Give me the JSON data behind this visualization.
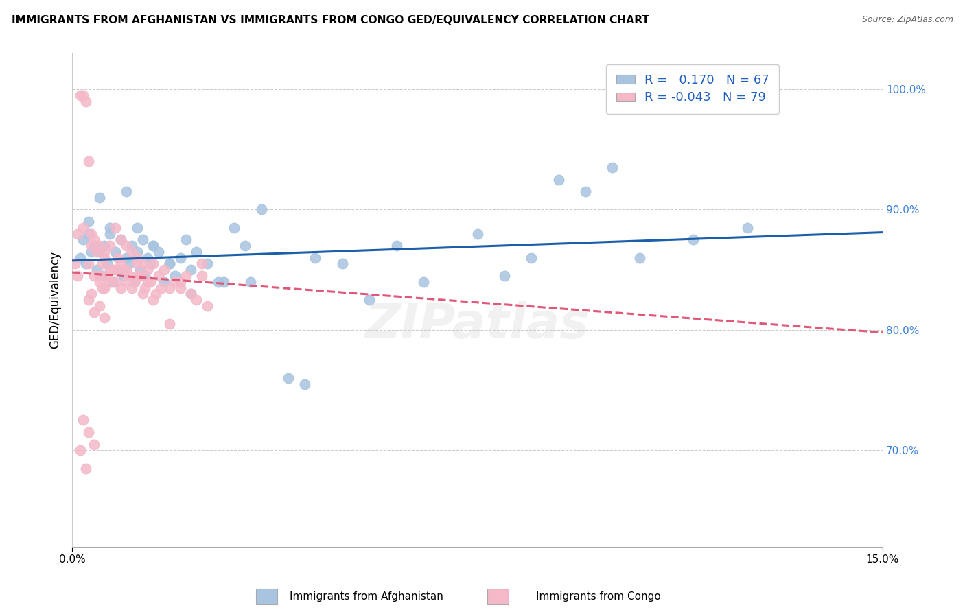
{
  "title": "IMMIGRANTS FROM AFGHANISTAN VS IMMIGRANTS FROM CONGO GED/EQUIVALENCY CORRELATION CHART",
  "source": "Source: ZipAtlas.com",
  "ylabel": "GED/Equivalency",
  "xlim": [
    0.0,
    15.0
  ],
  "ylim": [
    62.0,
    103.0
  ],
  "yticks": [
    70.0,
    80.0,
    90.0,
    100.0
  ],
  "ytick_labels": [
    "70.0%",
    "80.0%",
    "90.0%",
    "100.0%"
  ],
  "r_afghanistan": 0.17,
  "n_afghanistan": 67,
  "r_congo": -0.043,
  "n_congo": 79,
  "color_afghanistan": "#a8c4e0",
  "color_congo": "#f4b8c8",
  "line_color_afghanistan": "#1a5fa8",
  "line_color_congo": "#e05878",
  "background_color": "#ffffff",
  "afghanistan_x": [
    0.15,
    0.2,
    0.25,
    0.3,
    0.35,
    0.4,
    0.45,
    0.5,
    0.55,
    0.6,
    0.65,
    0.7,
    0.75,
    0.8,
    0.85,
    0.9,
    0.95,
    1.0,
    1.05,
    1.1,
    1.15,
    1.2,
    1.25,
    1.3,
    1.35,
    1.4,
    1.45,
    1.5,
    1.6,
    1.7,
    1.8,
    1.9,
    2.0,
    2.1,
    2.2,
    2.3,
    2.5,
    2.7,
    3.0,
    3.2,
    3.5,
    4.0,
    4.3,
    5.5,
    6.0,
    7.5,
    8.5,
    9.0,
    9.5,
    10.5,
    11.5,
    0.3,
    0.5,
    0.7,
    1.0,
    1.2,
    1.5,
    1.8,
    2.2,
    2.8,
    3.3,
    4.5,
    5.0,
    6.5,
    8.0,
    10.0,
    12.5
  ],
  "afghanistan_y": [
    86.0,
    87.5,
    85.5,
    88.0,
    86.5,
    87.0,
    85.0,
    86.5,
    84.5,
    87.0,
    85.5,
    88.0,
    84.0,
    86.5,
    85.0,
    87.5,
    84.5,
    86.0,
    85.5,
    87.0,
    84.0,
    86.5,
    85.0,
    87.5,
    84.5,
    86.0,
    85.5,
    87.0,
    86.5,
    84.0,
    85.5,
    84.5,
    86.0,
    87.5,
    85.0,
    86.5,
    85.5,
    84.0,
    88.5,
    87.0,
    90.0,
    76.0,
    75.5,
    82.5,
    87.0,
    88.0,
    86.0,
    92.5,
    91.5,
    86.0,
    87.5,
    89.0,
    91.0,
    88.5,
    91.5,
    88.5,
    87.0,
    85.5,
    83.0,
    84.0,
    84.0,
    86.0,
    85.5,
    84.0,
    84.5,
    93.5,
    88.5
  ],
  "congo_x": [
    0.05,
    0.1,
    0.15,
    0.2,
    0.25,
    0.3,
    0.35,
    0.4,
    0.45,
    0.5,
    0.55,
    0.6,
    0.65,
    0.7,
    0.75,
    0.8,
    0.85,
    0.9,
    0.95,
    1.0,
    1.05,
    1.1,
    1.15,
    1.2,
    1.25,
    1.3,
    1.35,
    1.4,
    1.45,
    1.5,
    1.55,
    1.6,
    1.65,
    1.7,
    1.8,
    1.9,
    2.0,
    2.1,
    2.2,
    2.3,
    2.4,
    2.5,
    0.1,
    0.2,
    0.3,
    0.35,
    0.4,
    0.5,
    0.6,
    0.7,
    0.8,
    0.9,
    1.0,
    1.1,
    1.2,
    1.3,
    1.4,
    1.5,
    0.2,
    0.3,
    0.4,
    0.15,
    0.25,
    1.8,
    2.4,
    0.5,
    0.6,
    0.7,
    0.8,
    0.9,
    1.0,
    1.2,
    0.3,
    0.4,
    0.5,
    0.6,
    2.0,
    0.35,
    0.55
  ],
  "congo_y": [
    85.5,
    84.5,
    99.5,
    99.5,
    99.0,
    94.0,
    88.0,
    87.5,
    86.5,
    87.0,
    85.5,
    86.5,
    84.5,
    87.0,
    85.0,
    88.5,
    86.0,
    87.5,
    85.0,
    87.0,
    84.5,
    86.5,
    84.0,
    86.0,
    84.5,
    85.5,
    83.5,
    85.0,
    84.0,
    85.5,
    83.0,
    84.5,
    83.5,
    85.0,
    83.5,
    84.0,
    83.5,
    84.5,
    83.0,
    82.5,
    85.5,
    82.0,
    88.0,
    88.5,
    85.5,
    87.0,
    84.5,
    84.0,
    83.5,
    84.0,
    85.0,
    83.5,
    85.0,
    83.5,
    84.5,
    83.0,
    84.0,
    82.5,
    72.5,
    71.5,
    70.5,
    70.0,
    68.5,
    80.5,
    84.5,
    84.5,
    86.0,
    85.0,
    84.0,
    85.5,
    84.0,
    85.5,
    82.5,
    81.5,
    82.0,
    81.0,
    84.0,
    83.0,
    83.5
  ]
}
